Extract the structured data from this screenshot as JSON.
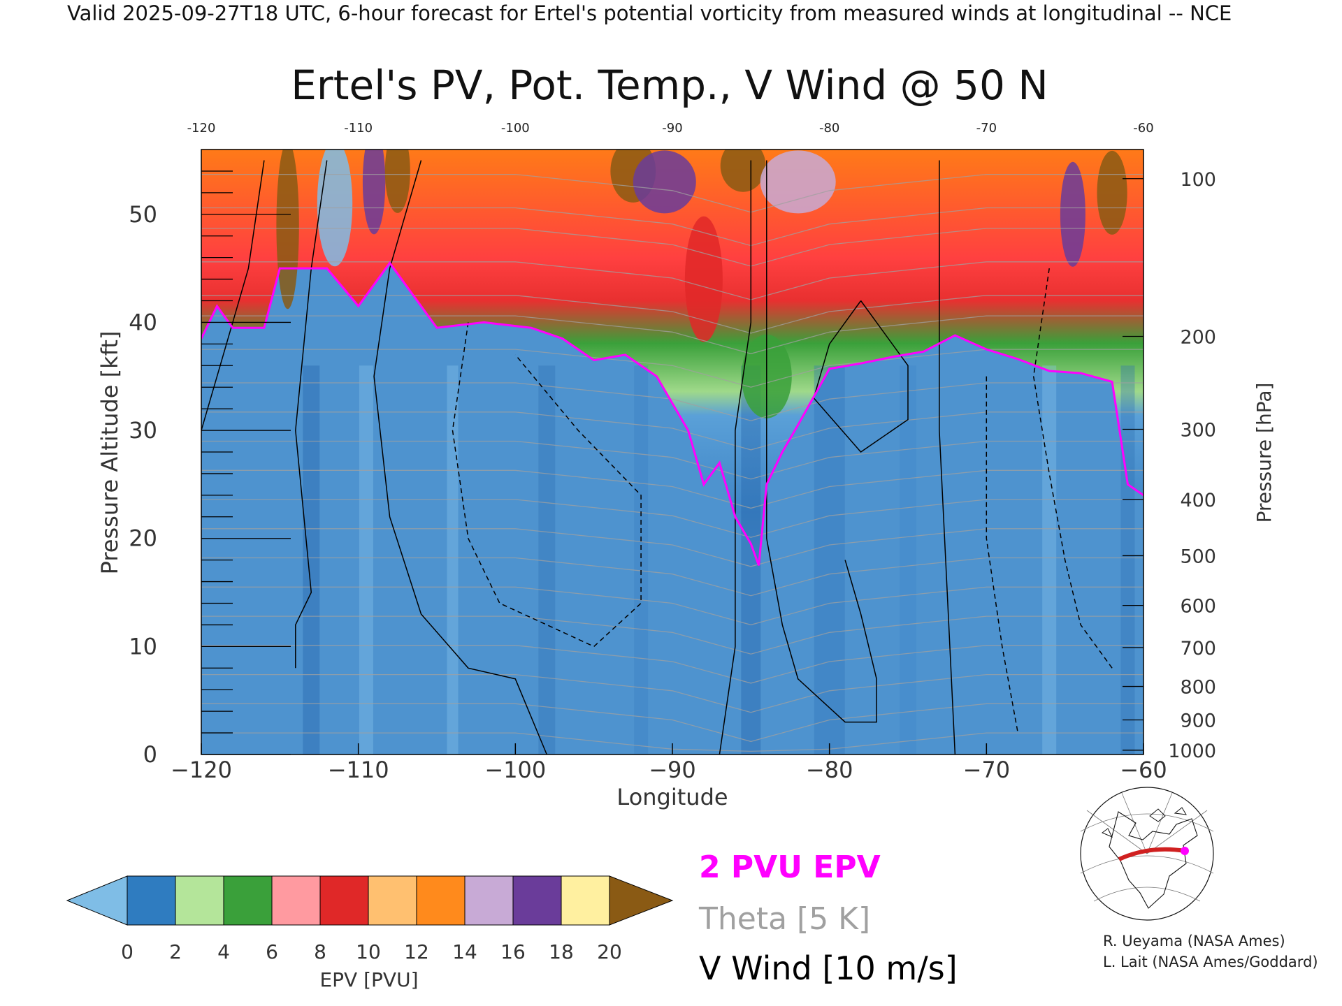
{
  "header": {
    "valid_line": "Valid 2025-09-27T18 UTC, 6-hour forecast for Ertel's potential vorticity from measured winds at longitudinal -- NCE"
  },
  "chart_data": {
    "type": "heatmap",
    "title": "Ertel's PV, Pot. Temp., V Wind @ 50 N",
    "xlabel": "Longitude",
    "ylabel_left": "Pressure Altitude [kft]",
    "ylabel_right": "Pressure [hPa]",
    "xlim": [
      -120,
      -60
    ],
    "ylim_kft": [
      0,
      56
    ],
    "x_ticks": [
      -120,
      -110,
      -100,
      -90,
      -80,
      -70,
      -60
    ],
    "x_tick_labels": [
      "−120",
      "−110",
      "−100",
      "−90",
      "−80",
      "−70",
      "−60"
    ],
    "x_top_tick_labels": [
      "-120",
      "-110",
      "-100",
      "-90",
      "-80",
      "-70",
      "-60"
    ],
    "y_ticks_kft": [
      0,
      10,
      20,
      30,
      40,
      50
    ],
    "pressure_ticks": [
      {
        "hpa": 1000,
        "kft": 0.4
      },
      {
        "hpa": 900,
        "kft": 3.2
      },
      {
        "hpa": 800,
        "kft": 6.3
      },
      {
        "hpa": 700,
        "kft": 9.9
      },
      {
        "hpa": 600,
        "kft": 13.8
      },
      {
        "hpa": 500,
        "kft": 18.4
      },
      {
        "hpa": 400,
        "kft": 23.6
      },
      {
        "hpa": 300,
        "kft": 30.1
      },
      {
        "hpa": 200,
        "kft": 38.7
      },
      {
        "hpa": 100,
        "kft": 53.3
      }
    ],
    "tropopause_2pvu": {
      "lon": [
        -120,
        -119,
        -118,
        -116,
        -115,
        -113,
        -112,
        -110,
        -108,
        -105,
        -102,
        -99,
        -97,
        -95,
        -93,
        -91,
        -89,
        -88,
        -87,
        -86,
        -85,
        -84.5,
        -84,
        -83,
        -82,
        -80,
        -78,
        -76,
        -74,
        -72,
        -70,
        -68,
        -66,
        -64,
        -62,
        -61,
        -60
      ],
      "kft": [
        38.5,
        41.5,
        39.5,
        39.5,
        45,
        45,
        45,
        41.5,
        45.5,
        39.5,
        40,
        39.5,
        38.5,
        36.5,
        37,
        35,
        30,
        25,
        27,
        22,
        19.5,
        17.5,
        25,
        28,
        30.5,
        35.7,
        36.2,
        36.8,
        37.3,
        38.8,
        37.5,
        36.6,
        35.5,
        35.3,
        34.5,
        25,
        24
      ]
    },
    "colorbar": {
      "label": "EPV [PVU]",
      "min": 0,
      "max": 20,
      "tick_labels": [
        "0",
        "2",
        "4",
        "6",
        "8",
        "10",
        "12",
        "14",
        "16",
        "18",
        "20"
      ],
      "colors": [
        "#7fbde6",
        "#2f7cc0",
        "#b4e59a",
        "#3aa03a",
        "#ff9aa0",
        "#e02828",
        "#ffc070",
        "#ff8a1c",
        "#c8aad6",
        "#6a3c9a",
        "#fff0a0",
        "#8a5a14"
      ]
    },
    "legend": [
      {
        "label": "2 PVU EPV",
        "color": "#ff00ff"
      },
      {
        "label": "Theta [5 K]",
        "color": "#a0a0a0"
      },
      {
        "label": "V Wind [10 m/s]",
        "color": "#000000"
      }
    ]
  },
  "credits": {
    "line1": "R. Ueyama (NASA Ames)",
    "line2": "L. Lait (NASA Ames/Goddard)"
  },
  "colors": {
    "tropopause": "#ff00ff",
    "theta": "#a0a0a0",
    "wind": "#000000"
  }
}
